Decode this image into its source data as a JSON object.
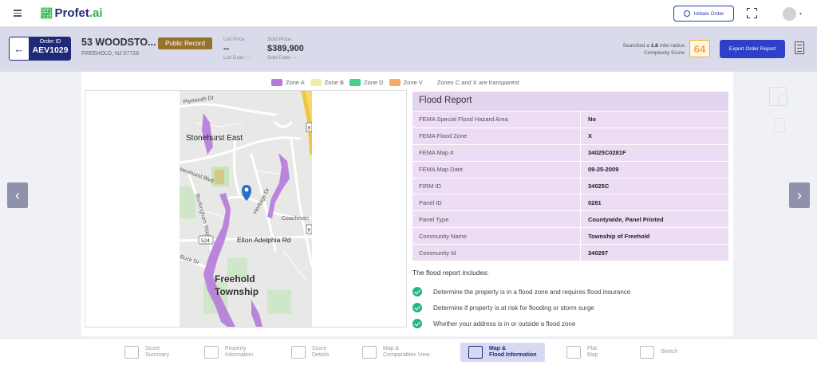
{
  "app": {
    "logo_text": "Profet",
    "logo_suffix": ".ai"
  },
  "topbar": {
    "initiate_label": "Initiate Order"
  },
  "order": {
    "id_label": "Order ID",
    "id": "AEV1029",
    "address": "53 WOODSTO...",
    "city": "FREEHOLD, NJ 07728",
    "badge": "Public Record",
    "list_price_label": "List Price",
    "list_price": "--",
    "list_date": "List Date: --",
    "sold_price_label": "Sold Price",
    "sold_price": "$389,900",
    "sold_date": "Sold Date: --",
    "radius_prefix": "Searched a",
    "radius_value": "1.8",
    "radius_suffix": "mile radius",
    "complexity_label": "Complexity Score",
    "complexity_score": "64",
    "export_label": "Export Order Report"
  },
  "legend": {
    "items": [
      {
        "label": "Zone A",
        "color": "#b57ad9"
      },
      {
        "label": "Zone B",
        "color": "#f3ecaa"
      },
      {
        "label": "Zone D",
        "color": "#45d08a"
      },
      {
        "label": "Zone V",
        "color": "#f2a96a"
      }
    ],
    "note": "Zones C and X are transparent"
  },
  "map": {
    "labels": {
      "plymouth": "Plymouth Dr",
      "stonehurst": "Stonehurst East",
      "stonehurst_blvd": "tonehurst Blvd",
      "buckingham": "Buckingham Way",
      "heritage": "Heritage Dr",
      "coachman": "Coachman",
      "elton": "Elton Adelphia Rd",
      "buck": "Buck Dr",
      "freehold": "Freehold",
      "township": "Township",
      "route_524": "524",
      "route_9a": "9",
      "route_9b": "9"
    }
  },
  "flood_report": {
    "title": "Flood Report",
    "rows": [
      {
        "key": "FEMA Special Flood Hazard Area",
        "value": "No"
      },
      {
        "key": "FEMA Flood Zone",
        "value": "X"
      },
      {
        "key": "FEMA Map #",
        "value": "34025C0281F"
      },
      {
        "key": "FEMA Map Date",
        "value": "09-25-2009"
      },
      {
        "key": "FIRM ID",
        "value": "34025C"
      },
      {
        "key": "Panel ID",
        "value": "0281"
      },
      {
        "key": "Panel Type",
        "value": "Countywide, Panel Printed"
      },
      {
        "key": "Community Name",
        "value": "Township of Freehold"
      },
      {
        "key": "Community Id",
        "value": "340297"
      }
    ],
    "includes_title": "The flood report includes:",
    "includes": [
      "Determine the property is in a flood zone and requires flood insurance",
      "Determine if property is at risk for flooding or storm surge",
      "Whether your address is in or outside a flood zone"
    ]
  },
  "bottom_nav": [
    {
      "line1": "Score",
      "line2": "Summary"
    },
    {
      "line1": "Property",
      "line2": "Information"
    },
    {
      "line1": "Score",
      "line2": "Details"
    },
    {
      "line1": "Map &",
      "line2": "Comparables View"
    },
    {
      "line1": "Map &",
      "line2": "Flood Information"
    },
    {
      "line1": "Plat",
      "line2": "Map"
    },
    {
      "line1": "Sketch",
      "line2": ""
    }
  ]
}
